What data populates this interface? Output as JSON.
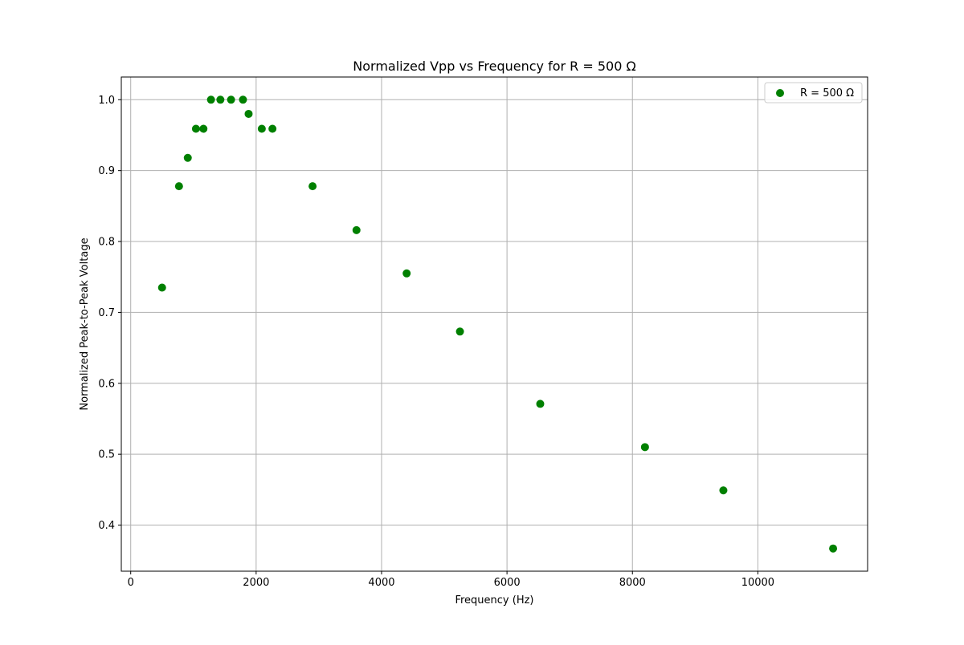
{
  "chart_data": {
    "type": "scatter",
    "title": "Normalized Vpp vs Frequency for R = 500 Ω",
    "xlabel": "Frequency (Hz)",
    "ylabel": "Normalized Peak-to-Peak Voltage",
    "xlim": [
      -150,
      11750
    ],
    "ylim": [
      0.335,
      1.032
    ],
    "xticks": [
      0,
      2000,
      4000,
      6000,
      8000,
      10000
    ],
    "yticks": [
      0.4,
      0.5,
      0.6,
      0.7,
      0.8,
      0.9,
      1.0
    ],
    "grid": true,
    "legend_position": "top-right",
    "series": [
      {
        "name": "R = 500 Ω",
        "color": "#008000",
        "marker": "circle",
        "x": [
          500,
          770,
          910,
          1040,
          1160,
          1280,
          1430,
          1600,
          1790,
          1880,
          2090,
          2260,
          2900,
          3600,
          4400,
          5250,
          6530,
          8200,
          9450,
          11200
        ],
        "y": [
          0.735,
          0.878,
          0.918,
          0.959,
          0.959,
          1.0,
          1.0,
          1.0,
          1.0,
          0.98,
          0.959,
          0.959,
          0.878,
          0.816,
          0.755,
          0.673,
          0.571,
          0.51,
          0.449,
          0.367
        ]
      }
    ]
  }
}
